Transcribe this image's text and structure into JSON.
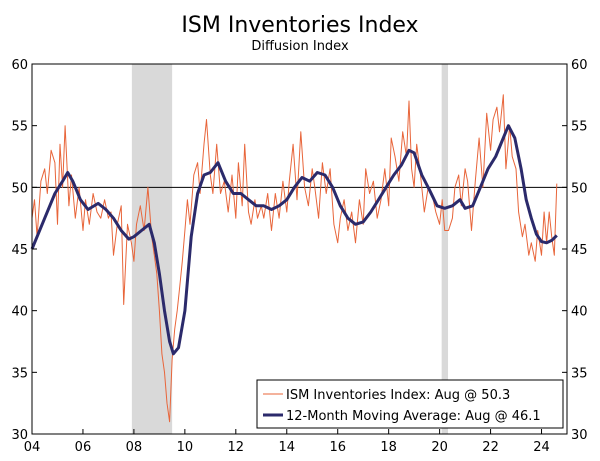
{
  "chart_data": {
    "type": "line",
    "title": "ISM Inventories Index",
    "subtitle": "Diffusion Index",
    "xlabel": "",
    "ylabel": "",
    "xlim": [
      2004.0,
      2025.0
    ],
    "ylim": [
      30,
      60
    ],
    "y_ticks": [
      30,
      35,
      40,
      45,
      50,
      55,
      60
    ],
    "x_ticks": [
      {
        "value": 2004,
        "label": "04"
      },
      {
        "value": 2006,
        "label": "06"
      },
      {
        "value": 2008,
        "label": "08"
      },
      {
        "value": 2010,
        "label": "10"
      },
      {
        "value": 2012,
        "label": "12"
      },
      {
        "value": 2014,
        "label": "14"
      },
      {
        "value": 2016,
        "label": "16"
      },
      {
        "value": 2018,
        "label": "18"
      },
      {
        "value": 2020,
        "label": "20"
      },
      {
        "value": 2022,
        "label": "22"
      },
      {
        "value": 2024,
        "label": "24"
      }
    ],
    "reference_line": 50,
    "recessions": [
      {
        "start": 2007.92,
        "end": 2009.5
      },
      {
        "start": 2020.08,
        "end": 2020.33
      }
    ],
    "legend": {
      "position": "bottom-right"
    },
    "series": [
      {
        "name": "ISM Inventories Index: Aug @ 50.3",
        "color": "#e8653a",
        "width": 1,
        "points": [
          [
            2004.0,
            47.5
          ],
          [
            2004.1,
            49.0
          ],
          [
            2004.2,
            46.0
          ],
          [
            2004.35,
            50.5
          ],
          [
            2004.5,
            51.5
          ],
          [
            2004.6,
            49.5
          ],
          [
            2004.75,
            53.0
          ],
          [
            2004.9,
            52.0
          ],
          [
            2005.0,
            47.0
          ],
          [
            2005.1,
            53.5
          ],
          [
            2005.2,
            50.0
          ],
          [
            2005.3,
            55.0
          ],
          [
            2005.45,
            48.5
          ],
          [
            2005.55,
            51.0
          ],
          [
            2005.7,
            47.5
          ],
          [
            2005.85,
            50.0
          ],
          [
            2006.0,
            46.5
          ],
          [
            2006.1,
            49.0
          ],
          [
            2006.25,
            47.0
          ],
          [
            2006.4,
            49.5
          ],
          [
            2006.55,
            48.0
          ],
          [
            2006.7,
            47.5
          ],
          [
            2006.85,
            49.0
          ],
          [
            2007.0,
            47.5
          ],
          [
            2007.1,
            48.0
          ],
          [
            2007.2,
            44.5
          ],
          [
            2007.35,
            47.0
          ],
          [
            2007.5,
            48.5
          ],
          [
            2007.6,
            40.5
          ],
          [
            2007.75,
            47.0
          ],
          [
            2007.9,
            45.5
          ],
          [
            2008.0,
            44.0
          ],
          [
            2008.1,
            47.0
          ],
          [
            2008.25,
            48.5
          ],
          [
            2008.4,
            46.5
          ],
          [
            2008.55,
            50.0
          ],
          [
            2008.7,
            46.0
          ],
          [
            2008.8,
            44.5
          ],
          [
            2008.9,
            43.0
          ],
          [
            2009.0,
            40.0
          ],
          [
            2009.1,
            36.5
          ],
          [
            2009.2,
            35.0
          ],
          [
            2009.3,
            32.5
          ],
          [
            2009.4,
            31.0
          ],
          [
            2009.5,
            36.0
          ],
          [
            2009.6,
            38.5
          ],
          [
            2009.7,
            40.0
          ],
          [
            2009.8,
            42.0
          ],
          [
            2009.9,
            44.0
          ],
          [
            2010.0,
            46.5
          ],
          [
            2010.1,
            49.0
          ],
          [
            2010.2,
            47.0
          ],
          [
            2010.35,
            51.0
          ],
          [
            2010.5,
            52.0
          ],
          [
            2010.6,
            49.5
          ],
          [
            2010.75,
            53.5
          ],
          [
            2010.85,
            55.5
          ],
          [
            2011.0,
            51.0
          ],
          [
            2011.1,
            49.5
          ],
          [
            2011.25,
            53.5
          ],
          [
            2011.4,
            49.5
          ],
          [
            2011.55,
            50.5
          ],
          [
            2011.7,
            48.0
          ],
          [
            2011.85,
            51.0
          ],
          [
            2012.0,
            47.5
          ],
          [
            2012.1,
            52.0
          ],
          [
            2012.25,
            48.5
          ],
          [
            2012.35,
            53.5
          ],
          [
            2012.5,
            48.0
          ],
          [
            2012.6,
            47.0
          ],
          [
            2012.75,
            49.0
          ],
          [
            2012.85,
            47.5
          ],
          [
            2013.0,
            48.5
          ],
          [
            2013.1,
            47.5
          ],
          [
            2013.25,
            49.5
          ],
          [
            2013.4,
            46.5
          ],
          [
            2013.55,
            49.5
          ],
          [
            2013.7,
            47.5
          ],
          [
            2013.85,
            50.5
          ],
          [
            2014.0,
            48.0
          ],
          [
            2014.1,
            50.5
          ],
          [
            2014.25,
            53.5
          ],
          [
            2014.4,
            49.0
          ],
          [
            2014.55,
            54.5
          ],
          [
            2014.7,
            50.0
          ],
          [
            2014.85,
            48.5
          ],
          [
            2015.0,
            51.5
          ],
          [
            2015.1,
            50.0
          ],
          [
            2015.25,
            47.5
          ],
          [
            2015.4,
            52.0
          ],
          [
            2015.55,
            49.5
          ],
          [
            2015.7,
            51.5
          ],
          [
            2015.85,
            47.0
          ],
          [
            2016.0,
            45.5
          ],
          [
            2016.1,
            47.5
          ],
          [
            2016.25,
            49.0
          ],
          [
            2016.4,
            46.5
          ],
          [
            2016.55,
            48.0
          ],
          [
            2016.7,
            45.5
          ],
          [
            2016.85,
            49.0
          ],
          [
            2017.0,
            47.0
          ],
          [
            2017.1,
            51.5
          ],
          [
            2017.25,
            49.5
          ],
          [
            2017.4,
            50.5
          ],
          [
            2017.55,
            47.5
          ],
          [
            2017.7,
            49.0
          ],
          [
            2017.85,
            51.5
          ],
          [
            2018.0,
            48.5
          ],
          [
            2018.1,
            54.0
          ],
          [
            2018.25,
            52.5
          ],
          [
            2018.4,
            50.5
          ],
          [
            2018.55,
            54.5
          ],
          [
            2018.7,
            52.5
          ],
          [
            2018.8,
            57.0
          ],
          [
            2018.9,
            51.5
          ],
          [
            2019.0,
            50.0
          ],
          [
            2019.1,
            53.5
          ],
          [
            2019.25,
            51.0
          ],
          [
            2019.4,
            48.0
          ],
          [
            2019.55,
            50.0
          ],
          [
            2019.7,
            49.5
          ],
          [
            2019.85,
            48.0
          ],
          [
            2020.0,
            47.0
          ],
          [
            2020.1,
            49.0
          ],
          [
            2020.2,
            46.5
          ],
          [
            2020.35,
            46.5
          ],
          [
            2020.5,
            47.5
          ],
          [
            2020.6,
            50.0
          ],
          [
            2020.75,
            51.0
          ],
          [
            2020.85,
            48.5
          ],
          [
            2021.0,
            51.5
          ],
          [
            2021.1,
            50.5
          ],
          [
            2021.25,
            46.5
          ],
          [
            2021.4,
            50.5
          ],
          [
            2021.55,
            54.0
          ],
          [
            2021.7,
            50.0
          ],
          [
            2021.85,
            56.0
          ],
          [
            2022.0,
            53.0
          ],
          [
            2022.1,
            55.5
          ],
          [
            2022.25,
            56.5
          ],
          [
            2022.35,
            54.5
          ],
          [
            2022.5,
            57.5
          ],
          [
            2022.6,
            51.5
          ],
          [
            2022.75,
            55.0
          ],
          [
            2022.85,
            52.5
          ],
          [
            2023.0,
            51.5
          ],
          [
            2023.1,
            48.0
          ],
          [
            2023.25,
            46.0
          ],
          [
            2023.35,
            47.0
          ],
          [
            2023.5,
            44.5
          ],
          [
            2023.6,
            45.5
          ],
          [
            2023.75,
            44.0
          ],
          [
            2023.85,
            46.5
          ],
          [
            2024.0,
            44.5
          ],
          [
            2024.1,
            48.0
          ],
          [
            2024.2,
            45.5
          ],
          [
            2024.3,
            48.0
          ],
          [
            2024.4,
            46.0
          ],
          [
            2024.5,
            44.5
          ],
          [
            2024.6,
            50.3
          ]
        ]
      },
      {
        "name": "12-Month Moving Average: Aug @ 46.1",
        "color": "#2b2a6b",
        "width": 3,
        "points": [
          [
            2004.0,
            45.0
          ],
          [
            2004.5,
            47.5
          ],
          [
            2004.9,
            49.5
          ],
          [
            2005.2,
            50.5
          ],
          [
            2005.4,
            51.2
          ],
          [
            2005.6,
            50.5
          ],
          [
            2005.9,
            49.0
          ],
          [
            2006.2,
            48.2
          ],
          [
            2006.6,
            48.7
          ],
          [
            2006.9,
            48.2
          ],
          [
            2007.2,
            47.5
          ],
          [
            2007.5,
            46.5
          ],
          [
            2007.8,
            45.8
          ],
          [
            2008.0,
            46.0
          ],
          [
            2008.3,
            46.5
          ],
          [
            2008.6,
            47.0
          ],
          [
            2008.8,
            45.5
          ],
          [
            2009.0,
            43.0
          ],
          [
            2009.2,
            40.0
          ],
          [
            2009.4,
            37.5
          ],
          [
            2009.55,
            36.5
          ],
          [
            2009.75,
            37.0
          ],
          [
            2010.0,
            40.0
          ],
          [
            2010.25,
            46.0
          ],
          [
            2010.5,
            49.5
          ],
          [
            2010.75,
            51.0
          ],
          [
            2011.0,
            51.2
          ],
          [
            2011.3,
            52.0
          ],
          [
            2011.6,
            50.5
          ],
          [
            2011.9,
            49.5
          ],
          [
            2012.2,
            49.5
          ],
          [
            2012.5,
            49.0
          ],
          [
            2012.8,
            48.5
          ],
          [
            2013.1,
            48.5
          ],
          [
            2013.4,
            48.2
          ],
          [
            2013.7,
            48.5
          ],
          [
            2014.0,
            49.0
          ],
          [
            2014.3,
            50.0
          ],
          [
            2014.6,
            50.8
          ],
          [
            2014.9,
            50.5
          ],
          [
            2015.2,
            51.2
          ],
          [
            2015.5,
            51.0
          ],
          [
            2015.8,
            50.0
          ],
          [
            2016.1,
            48.5
          ],
          [
            2016.4,
            47.5
          ],
          [
            2016.7,
            47.0
          ],
          [
            2017.0,
            47.2
          ],
          [
            2017.3,
            48.0
          ],
          [
            2017.6,
            49.0
          ],
          [
            2017.9,
            50.0
          ],
          [
            2018.2,
            51.0
          ],
          [
            2018.5,
            51.8
          ],
          [
            2018.8,
            53.0
          ],
          [
            2019.0,
            52.8
          ],
          [
            2019.3,
            51.0
          ],
          [
            2019.6,
            49.8
          ],
          [
            2019.9,
            48.5
          ],
          [
            2020.2,
            48.3
          ],
          [
            2020.5,
            48.5
          ],
          [
            2020.8,
            49.0
          ],
          [
            2021.0,
            48.3
          ],
          [
            2021.3,
            48.5
          ],
          [
            2021.6,
            50.0
          ],
          [
            2021.9,
            51.5
          ],
          [
            2022.2,
            52.5
          ],
          [
            2022.5,
            54.0
          ],
          [
            2022.7,
            55.0
          ],
          [
            2022.95,
            54.0
          ],
          [
            2023.2,
            51.5
          ],
          [
            2023.4,
            49.0
          ],
          [
            2023.6,
            47.5
          ],
          [
            2023.8,
            46.2
          ],
          [
            2024.0,
            45.6
          ],
          [
            2024.2,
            45.5
          ],
          [
            2024.4,
            45.7
          ],
          [
            2024.6,
            46.1
          ]
        ]
      }
    ]
  }
}
